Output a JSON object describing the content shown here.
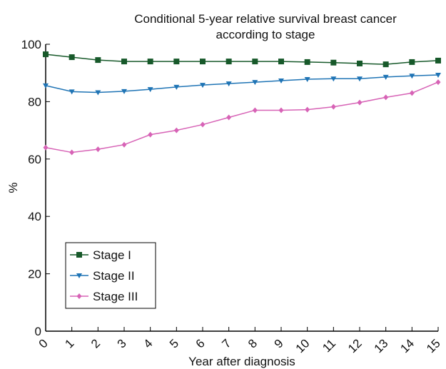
{
  "chart_data": {
    "type": "line",
    "title": [
      "Conditional 5-year relative survival breast cancer",
      "according to stage"
    ],
    "x_label": "Year after diagnosis",
    "y_label": "%",
    "x": [
      0,
      1,
      2,
      3,
      4,
      5,
      6,
      7,
      8,
      9,
      10,
      11,
      12,
      13,
      14,
      15
    ],
    "series": [
      {
        "name": "Stage I",
        "color": "#17592a",
        "marker": "square",
        "values": [
          96.5,
          95.5,
          94.5,
          94,
          94,
          94,
          94,
          94,
          94,
          94,
          93.8,
          93.6,
          93.3,
          93,
          93.8,
          94.3
        ]
      },
      {
        "name": "Stage II",
        "color": "#1f74b5",
        "marker": "triangle-down",
        "values": [
          85.6,
          83.5,
          83.2,
          83.6,
          84.3,
          85.1,
          85.8,
          86.3,
          86.8,
          87.3,
          87.8,
          88,
          88,
          88.6,
          89,
          89.3
        ]
      },
      {
        "name": "Stage III",
        "color": "#d763b6",
        "marker": "diamond",
        "values": [
          64,
          62.3,
          63.4,
          65,
          68.5,
          70,
          72,
          74.5,
          77,
          77,
          77.2,
          78.2,
          79.7,
          81.5,
          83,
          86.8
        ]
      }
    ],
    "xlim": [
      0,
      15
    ],
    "xticks": [
      0,
      1,
      2,
      3,
      4,
      5,
      6,
      7,
      8,
      9,
      10,
      11,
      12,
      13,
      14,
      15
    ],
    "ylim": [
      0,
      100
    ],
    "yticks": [
      0,
      20,
      40,
      60,
      80,
      100
    ],
    "grid": false,
    "legend": "lower left"
  }
}
